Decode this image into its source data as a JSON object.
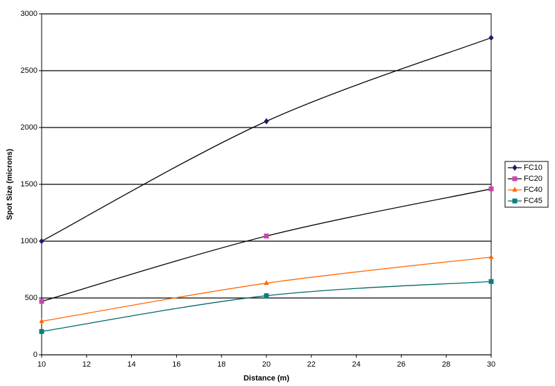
{
  "chart_data": {
    "type": "line",
    "smooth": true,
    "x_label": "Distance (m)",
    "y_label": "Spot Size (microns)",
    "x": [
      10,
      20,
      30
    ],
    "series": [
      {
        "name": "FC10",
        "color": "#1a1a66",
        "line_color": "#000000",
        "marker": "diamond",
        "values": [
          1000,
          2055,
          2790
        ]
      },
      {
        "name": "FC20",
        "color": "#cc44aa",
        "line_color": "#000000",
        "marker": "square",
        "values": [
          470,
          1045,
          1460
        ]
      },
      {
        "name": "FC40",
        "color": "#ff6600",
        "line_color": "#ff6600",
        "marker": "triangle",
        "values": [
          295,
          630,
          860
        ]
      },
      {
        "name": "FC45",
        "color": "#008080",
        "line_color": "#006666",
        "marker": "square",
        "values": [
          205,
          520,
          645
        ]
      }
    ],
    "xlim": [
      10,
      30
    ],
    "xticks": [
      10,
      12,
      14,
      16,
      18,
      20,
      22,
      24,
      26,
      28,
      30
    ],
    "ylim": [
      0,
      3000
    ],
    "yticks": [
      0,
      500,
      1000,
      1500,
      2000,
      2500,
      3000
    ],
    "grid": true,
    "legend": "right"
  }
}
